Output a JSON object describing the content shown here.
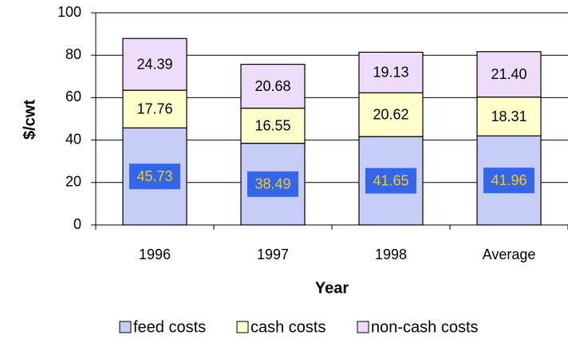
{
  "chart_data": {
    "type": "stacked_bar",
    "categories": [
      "1996",
      "1997",
      "1998",
      "Average"
    ],
    "series": [
      {
        "name": "feed costs",
        "color": "#c6cdf6",
        "values": [
          45.73,
          38.49,
          41.65,
          41.96
        ],
        "value_labels": [
          "45.73",
          "38.49",
          "41.65",
          "41.96"
        ]
      },
      {
        "name": "cash costs",
        "color": "#ffffcc",
        "values": [
          17.76,
          16.55,
          20.62,
          18.31
        ],
        "value_labels": [
          "17.76",
          "16.55",
          "20.62",
          "18.31"
        ]
      },
      {
        "name": "non-cash costs",
        "color": "#eedcfa",
        "values": [
          24.39,
          20.68,
          19.13,
          21.4
        ],
        "value_labels": [
          "24.39",
          "20.68",
          "19.13",
          "21.40"
        ]
      }
    ],
    "ylim": [
      0,
      100
    ],
    "yticks": [
      0,
      20,
      40,
      60,
      80,
      100
    ],
    "grid": true,
    "y_label": "$/cwt",
    "x_label": "Year",
    "legend": "bottom"
  }
}
